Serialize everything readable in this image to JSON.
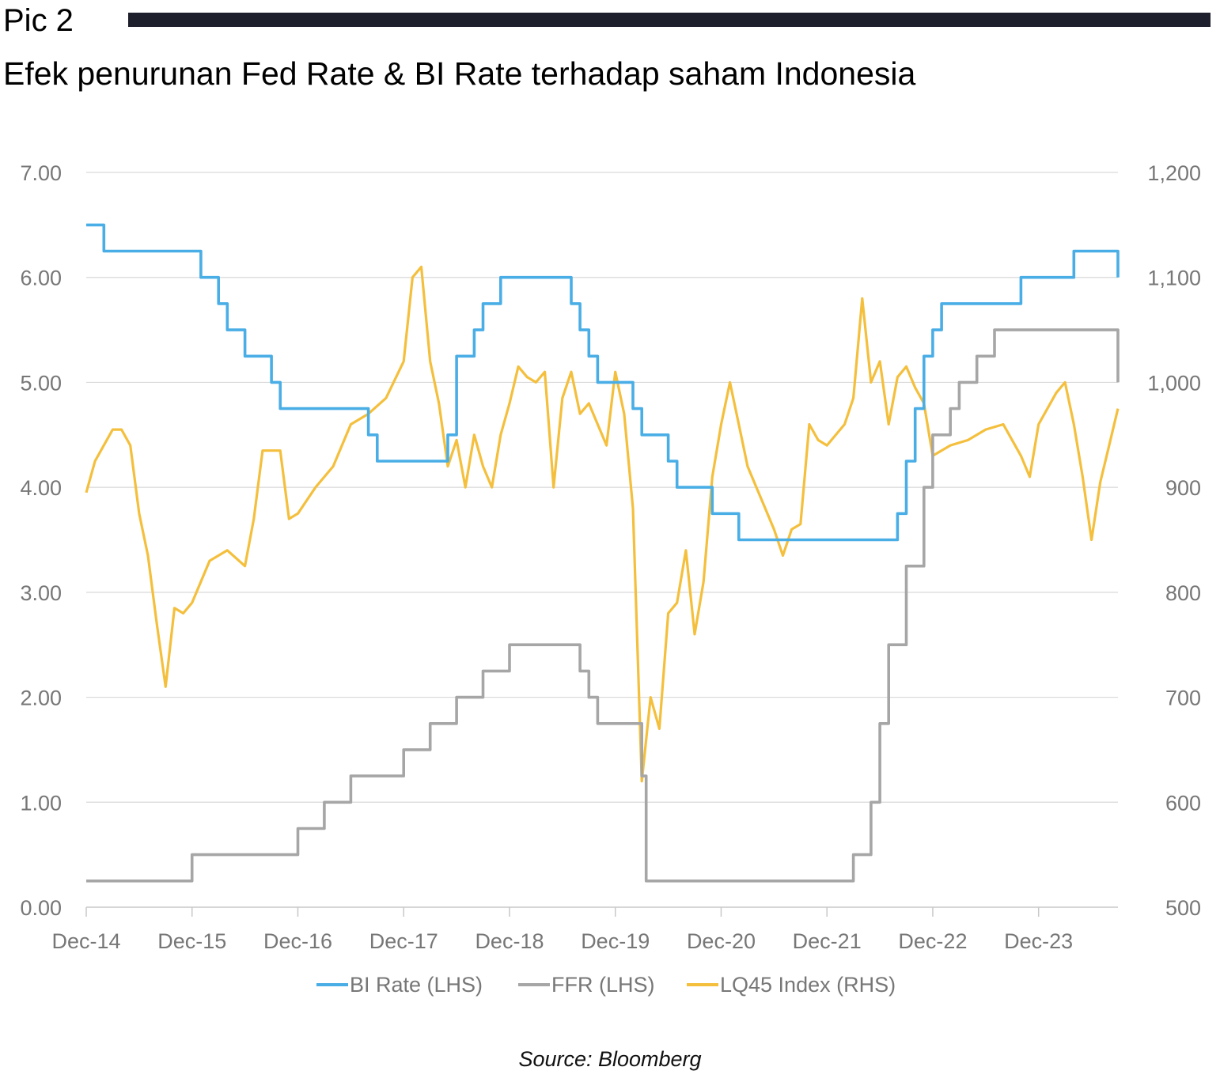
{
  "header": {
    "pic_label": "Pic 2",
    "title": "Efek penurunan Fed Rate & BI Rate terhadap saham Indonesia"
  },
  "source": "Source: Bloomberg",
  "colors": {
    "bi_rate": "#4aaee6",
    "ffr": "#a6a6a6",
    "lq45": "#f4bf3c",
    "grid": "#d9d9d9",
    "axis_text": "#777777",
    "header_rule": "#1d1f2c"
  },
  "chart_data": {
    "type": "line",
    "x_axis": {
      "start": "2014-12",
      "end": "2024-09",
      "tick_labels": [
        "Dec-14",
        "Dec-15",
        "Dec-16",
        "Dec-17",
        "Dec-18",
        "Dec-19",
        "Dec-20",
        "Dec-21",
        "Dec-22",
        "Dec-23"
      ]
    },
    "y_left": {
      "range": [
        0,
        7
      ],
      "tick_labels": [
        "0.00",
        "1.00",
        "2.00",
        "3.00",
        "4.00",
        "5.00",
        "6.00",
        "7.00"
      ]
    },
    "y_right": {
      "range": [
        500,
        1200
      ],
      "tick_labels": [
        "500",
        "600",
        "700",
        "800",
        "900",
        "1,000",
        "1,100",
        "1,200"
      ]
    },
    "grid": true,
    "legend_position": "bottom",
    "series": [
      {
        "name": "BI Rate (LHS)",
        "axis": "left",
        "step": true,
        "points": [
          [
            "2014-12",
            6.5
          ],
          [
            "2015-02",
            6.25
          ],
          [
            "2016-01",
            6.0
          ],
          [
            "2016-03",
            5.75
          ],
          [
            "2016-04",
            5.5
          ],
          [
            "2016-06",
            5.25
          ],
          [
            "2016-09",
            5.0
          ],
          [
            "2016-10",
            4.75
          ],
          [
            "2017-08",
            4.5
          ],
          [
            "2017-09",
            4.25
          ],
          [
            "2018-05",
            4.5
          ],
          [
            "2018-06",
            5.25
          ],
          [
            "2018-08",
            5.5
          ],
          [
            "2018-09",
            5.75
          ],
          [
            "2018-10",
            5.75
          ],
          [
            "2018-11",
            6.0
          ],
          [
            "2019-07",
            5.75
          ],
          [
            "2019-08",
            5.5
          ],
          [
            "2019-09",
            5.25
          ],
          [
            "2019-10",
            5.0
          ],
          [
            "2020-02",
            4.75
          ],
          [
            "2020-03",
            4.5
          ],
          [
            "2020-06",
            4.25
          ],
          [
            "2020-07",
            4.0
          ],
          [
            "2020-11",
            3.75
          ],
          [
            "2021-02",
            3.5
          ],
          [
            "2022-08",
            3.75
          ],
          [
            "2022-09",
            4.25
          ],
          [
            "2022-10",
            4.75
          ],
          [
            "2022-11",
            5.25
          ],
          [
            "2022-12",
            5.5
          ],
          [
            "2023-01",
            5.75
          ],
          [
            "2023-10",
            6.0
          ],
          [
            "2024-04",
            6.25
          ],
          [
            "2024-09",
            6.0
          ]
        ]
      },
      {
        "name": "FFR (LHS)",
        "axis": "left",
        "step": true,
        "points": [
          [
            "2014-12",
            0.25
          ],
          [
            "2015-12",
            0.5
          ],
          [
            "2016-12",
            0.75
          ],
          [
            "2017-03",
            1.0
          ],
          [
            "2017-06",
            1.25
          ],
          [
            "2017-12",
            1.5
          ],
          [
            "2018-03",
            1.75
          ],
          [
            "2018-06",
            2.0
          ],
          [
            "2018-09",
            2.25
          ],
          [
            "2018-12",
            2.5
          ],
          [
            "2019-08",
            2.25
          ],
          [
            "2019-09",
            2.0
          ],
          [
            "2019-10",
            1.75
          ],
          [
            "2020-03",
            1.25
          ],
          [
            "2020-03-16",
            0.25
          ],
          [
            "2022-03",
            0.5
          ],
          [
            "2022-05",
            1.0
          ],
          [
            "2022-06",
            1.75
          ],
          [
            "2022-07",
            2.5
          ],
          [
            "2022-09",
            3.25
          ],
          [
            "2022-11",
            4.0
          ],
          [
            "2022-12",
            4.5
          ],
          [
            "2023-02",
            4.75
          ],
          [
            "2023-03",
            5.0
          ],
          [
            "2023-05",
            5.25
          ],
          [
            "2023-07",
            5.5
          ],
          [
            "2024-09",
            5.0
          ]
        ]
      },
      {
        "name": "LQ45 Index (RHS)",
        "axis": "right",
        "step": false,
        "points": [
          [
            "2014-12",
            895
          ],
          [
            "2015-01",
            925
          ],
          [
            "2015-03",
            955
          ],
          [
            "2015-04",
            955
          ],
          [
            "2015-05",
            940
          ],
          [
            "2015-06",
            875
          ],
          [
            "2015-07",
            835
          ],
          [
            "2015-08",
            770
          ],
          [
            "2015-09",
            710
          ],
          [
            "2015-10",
            785
          ],
          [
            "2015-11",
            780
          ],
          [
            "2015-12",
            790
          ],
          [
            "2016-02",
            830
          ],
          [
            "2016-04",
            840
          ],
          [
            "2016-06",
            825
          ],
          [
            "2016-07",
            870
          ],
          [
            "2016-08",
            935
          ],
          [
            "2016-10",
            935
          ],
          [
            "2016-11",
            870
          ],
          [
            "2016-12",
            875
          ],
          [
            "2017-02",
            900
          ],
          [
            "2017-04",
            920
          ],
          [
            "2017-06",
            960
          ],
          [
            "2017-08",
            970
          ],
          [
            "2017-10",
            985
          ],
          [
            "2017-12",
            1020
          ],
          [
            "2018-01",
            1100
          ],
          [
            "2018-02",
            1110
          ],
          [
            "2018-03",
            1020
          ],
          [
            "2018-04",
            980
          ],
          [
            "2018-05",
            920
          ],
          [
            "2018-06",
            945
          ],
          [
            "2018-07",
            900
          ],
          [
            "2018-08",
            950
          ],
          [
            "2018-09",
            920
          ],
          [
            "2018-10",
            900
          ],
          [
            "2018-11",
            950
          ],
          [
            "2018-12",
            980
          ],
          [
            "2019-01",
            1015
          ],
          [
            "2019-02",
            1005
          ],
          [
            "2019-03",
            1000
          ],
          [
            "2019-04",
            1010
          ],
          [
            "2019-05",
            900
          ],
          [
            "2019-06",
            985
          ],
          [
            "2019-07",
            1010
          ],
          [
            "2019-08",
            970
          ],
          [
            "2019-09",
            980
          ],
          [
            "2019-10",
            960
          ],
          [
            "2019-11",
            940
          ],
          [
            "2019-12",
            1010
          ],
          [
            "2020-01",
            970
          ],
          [
            "2020-02",
            880
          ],
          [
            "2020-03",
            620
          ],
          [
            "2020-04",
            700
          ],
          [
            "2020-05",
            670
          ],
          [
            "2020-06",
            780
          ],
          [
            "2020-07",
            790
          ],
          [
            "2020-08",
            840
          ],
          [
            "2020-09",
            760
          ],
          [
            "2020-10",
            810
          ],
          [
            "2020-11",
            910
          ],
          [
            "2020-12",
            960
          ],
          [
            "2021-01",
            1000
          ],
          [
            "2021-02",
            960
          ],
          [
            "2021-03",
            920
          ],
          [
            "2021-04",
            900
          ],
          [
            "2021-05",
            880
          ],
          [
            "2021-06",
            860
          ],
          [
            "2021-07",
            835
          ],
          [
            "2021-08",
            860
          ],
          [
            "2021-09",
            865
          ],
          [
            "2021-10",
            960
          ],
          [
            "2021-11",
            945
          ],
          [
            "2021-12",
            940
          ],
          [
            "2022-02",
            960
          ],
          [
            "2022-03",
            985
          ],
          [
            "2022-04",
            1080
          ],
          [
            "2022-05",
            1000
          ],
          [
            "2022-06",
            1020
          ],
          [
            "2022-07",
            960
          ],
          [
            "2022-08",
            1005
          ],
          [
            "2022-09",
            1015
          ],
          [
            "2022-10",
            995
          ],
          [
            "2022-11",
            980
          ],
          [
            "2022-12",
            930
          ],
          [
            "2023-02",
            940
          ],
          [
            "2023-04",
            945
          ],
          [
            "2023-06",
            955
          ],
          [
            "2023-08",
            960
          ],
          [
            "2023-10",
            930
          ],
          [
            "2023-11",
            910
          ],
          [
            "2023-12",
            960
          ],
          [
            "2024-02",
            990
          ],
          [
            "2024-03",
            1000
          ],
          [
            "2024-04",
            960
          ],
          [
            "2024-05",
            910
          ],
          [
            "2024-06",
            850
          ],
          [
            "2024-07",
            905
          ],
          [
            "2024-08",
            940
          ],
          [
            "2024-09",
            975
          ]
        ]
      }
    ]
  }
}
